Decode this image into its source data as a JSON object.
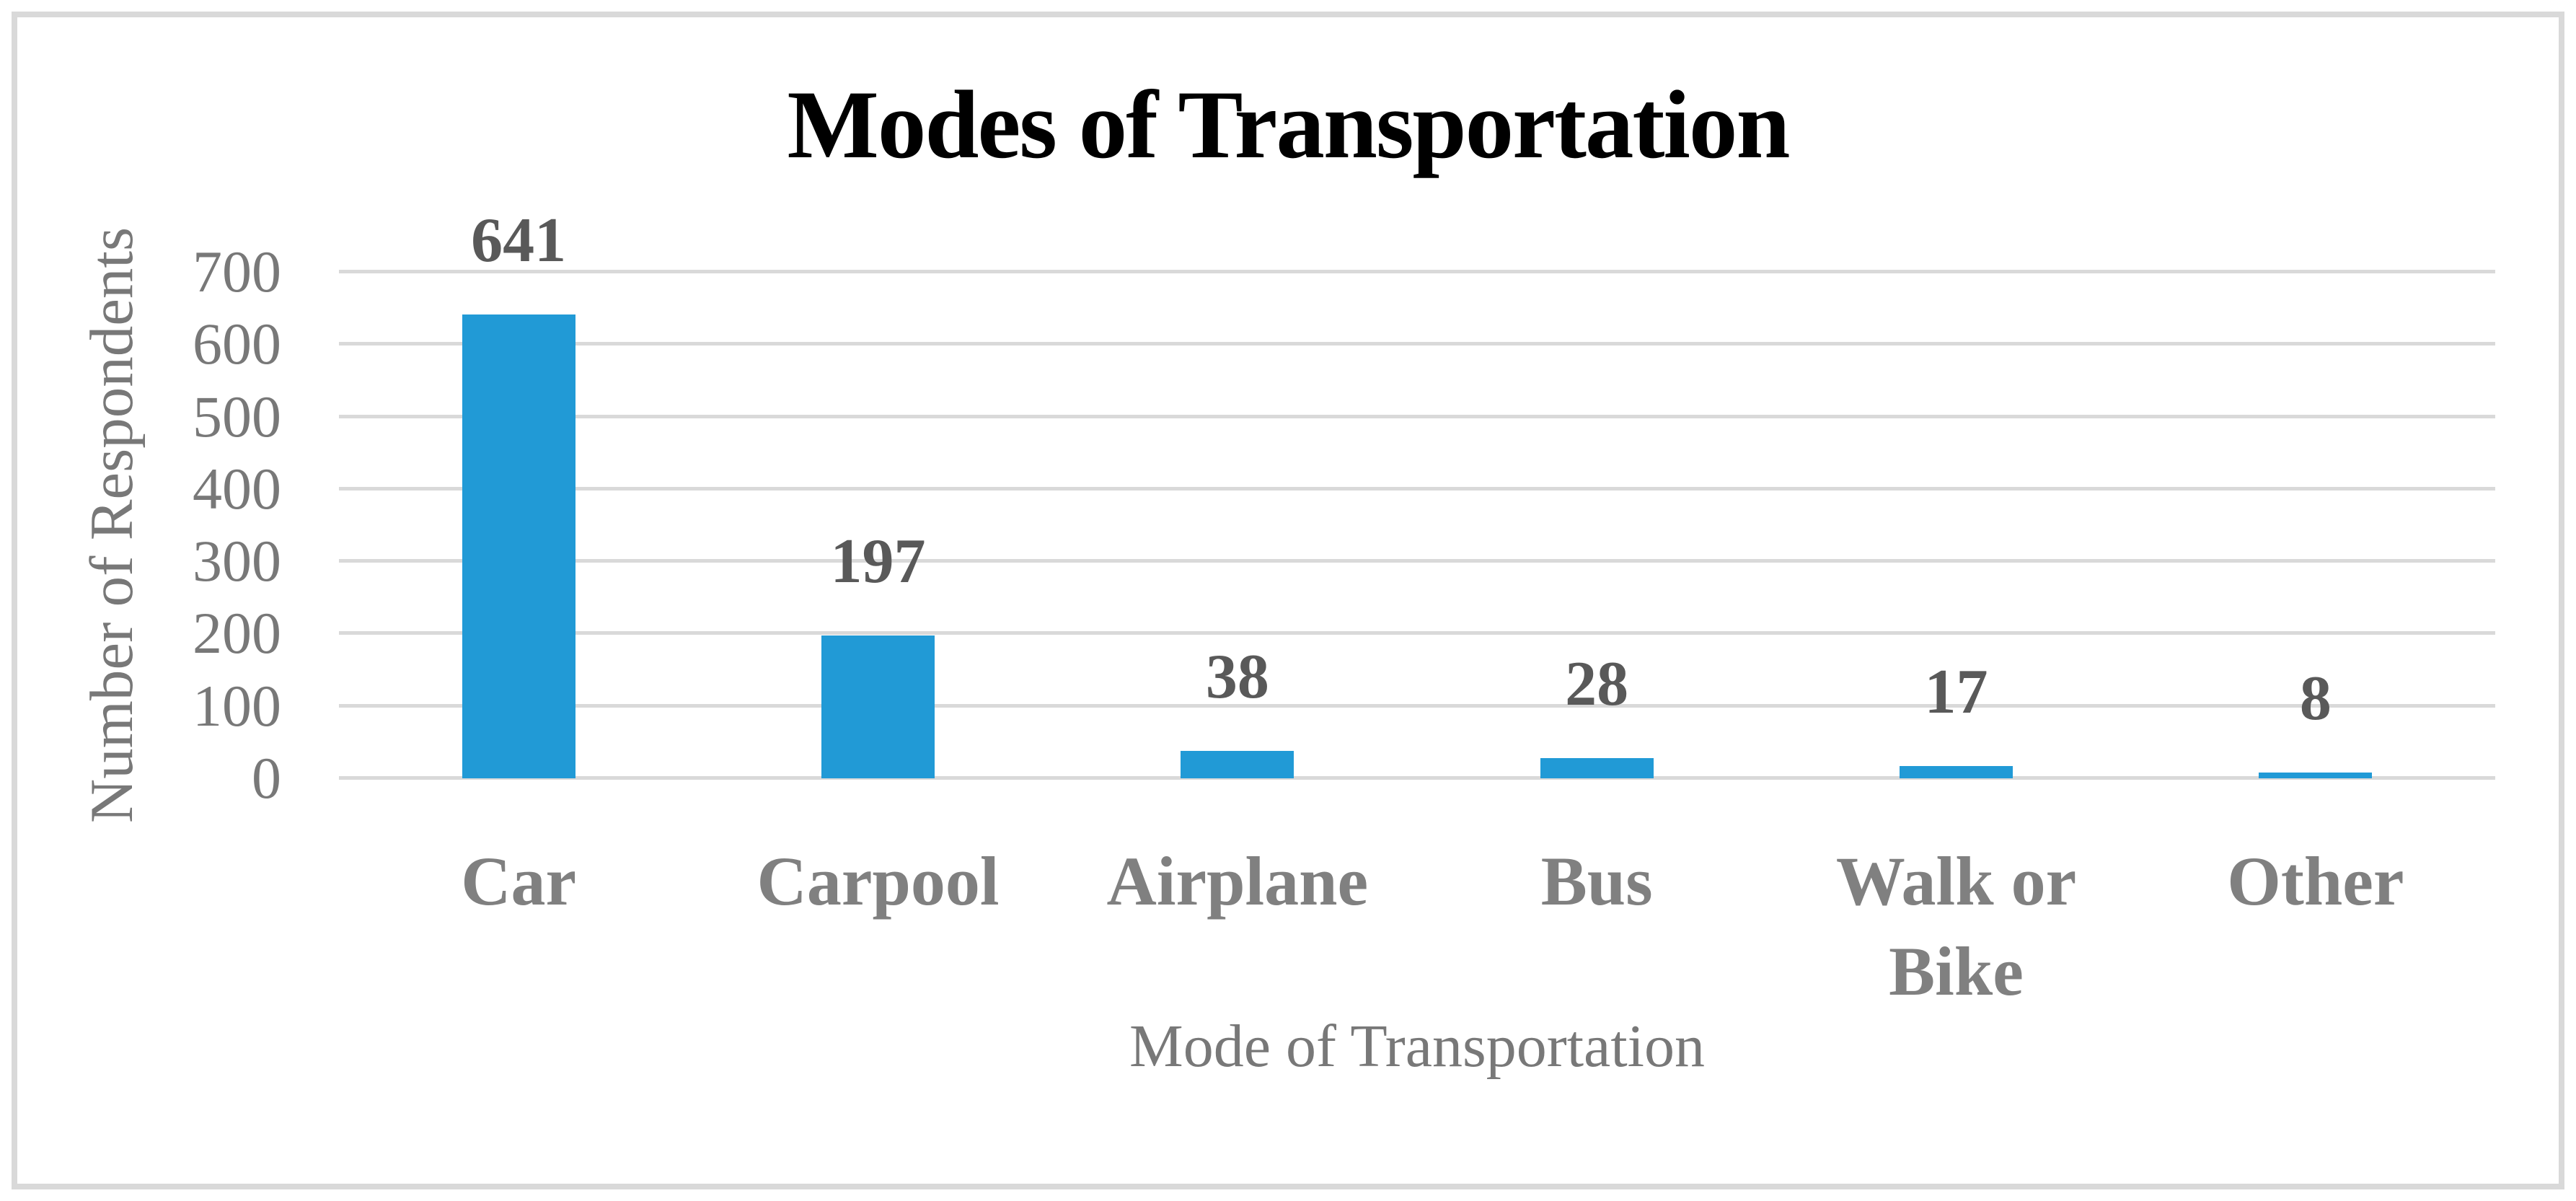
{
  "chart_data": {
    "type": "bar",
    "title": "Modes of Transportation",
    "xlabel": "Mode of Transportation",
    "ylabel": "Number of Respondents",
    "categories": [
      "Car",
      "Carpool",
      "Airplane",
      "Bus",
      "Walk or Bike",
      "Other"
    ],
    "values": [
      641,
      197,
      38,
      28,
      17,
      8
    ],
    "ylim": [
      0,
      700
    ],
    "yticks": [
      0,
      100,
      200,
      300,
      400,
      500,
      600,
      700
    ],
    "grid": true,
    "legend_position": "none",
    "colors": {
      "bar": "#219ad6",
      "gridline": "#d9d9d9",
      "frame_border": "#d9d9d9",
      "value_label": "#595959",
      "category_label": "#808080",
      "tick_label": "#787878",
      "axis_title": "#787878",
      "title": "#000000"
    }
  }
}
